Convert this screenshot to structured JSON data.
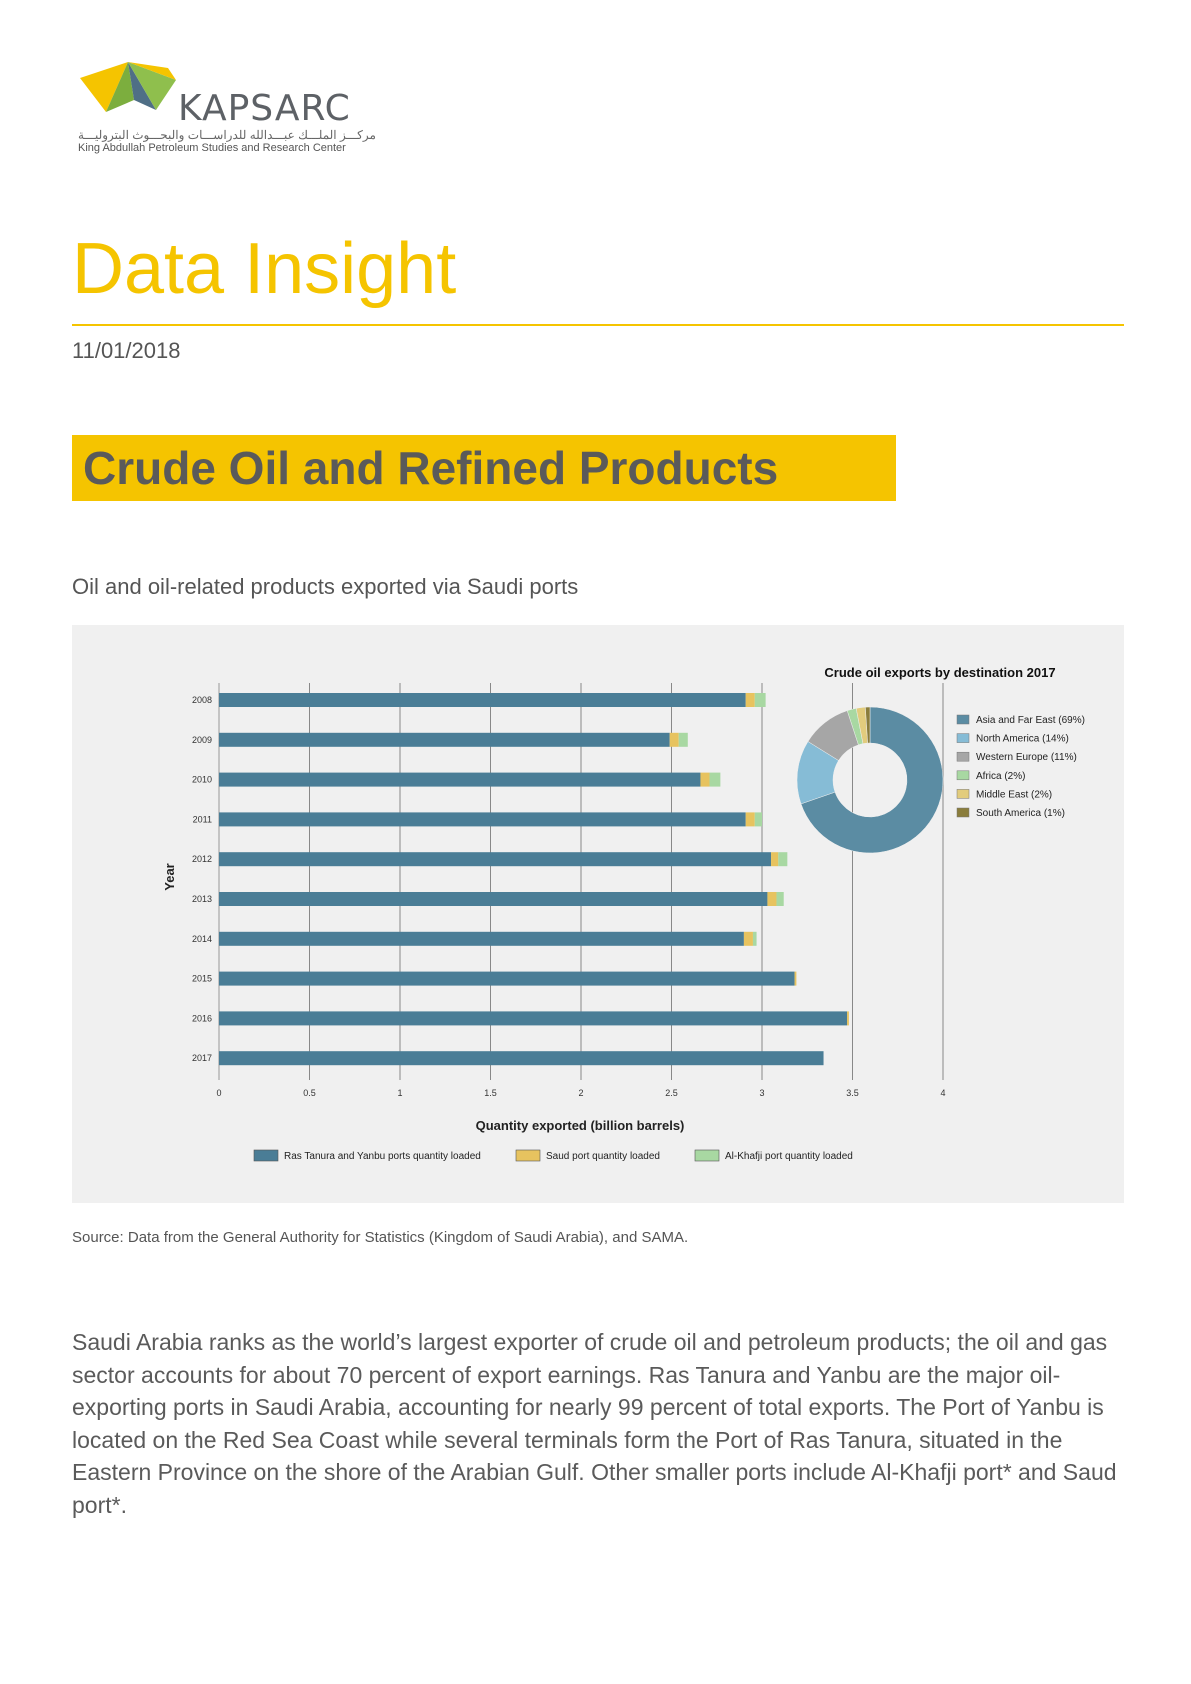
{
  "logo": {
    "name": "KAPSARC",
    "arabic": "مركـــز الملـــك عبـــدالله للدراســـات والبحـــوث البتروليـــة",
    "english": "King Abdullah Petroleum Studies and Research Center"
  },
  "header": {
    "title": "Data Insight",
    "date": "11/01/2018"
  },
  "section_title": "Crude Oil and Refined Products",
  "chart_title": "Oil and oil-related products exported via Saudi ports",
  "source": "Source: Data from the General Authority for Statistics (Kingdom of Saudi Arabia), and SAMA.",
  "body": "Saudi Arabia ranks as the world’s largest exporter of crude oil and petroleum products; the oil and gas sector accounts for about 70 percent of export earnings. Ras Tanura and Yanbu are the major oil-exporting ports in Saudi Arabia, accounting for nearly 99 percent of total exports. The Port of Yanbu is located on the Red Sea Coast while several terminals form the Port of Ras Tanura, situated in the Eastern Province on the shore of the Arabian Gulf. Other smaller ports include Al-Khafji port* and Saud port*.",
  "colors": {
    "accent": "#f5c400",
    "ras": "#4a7d96",
    "saud": "#e7c35f",
    "khafji": "#a8d8a2"
  },
  "chart_data": [
    {
      "type": "bar",
      "orientation": "horizontal",
      "stacked": true,
      "title": "",
      "xlabel": "Quantity exported (billion barrels)",
      "ylabel": "Year",
      "xlim": [
        0,
        4
      ],
      "xticks": [
        "0",
        "0.5",
        "1",
        "1.5",
        "2",
        "2.5",
        "3",
        "3.5",
        "4"
      ],
      "categories": [
        "2008",
        "2009",
        "2010",
        "2011",
        "2012",
        "2013",
        "2014",
        "2015",
        "2016",
        "2017"
      ],
      "series": [
        {
          "name": "Ras Tanura and Yanbu ports quantity loaded",
          "color": "#4a7d96",
          "values": [
            2.91,
            2.49,
            2.66,
            2.91,
            3.05,
            3.03,
            2.9,
            3.18,
            3.47,
            3.34
          ]
        },
        {
          "name": "Saud port quantity loaded",
          "color": "#e7c35f",
          "values": [
            0.05,
            0.05,
            0.05,
            0.05,
            0.04,
            0.05,
            0.05,
            0.01,
            0.01,
            0.0
          ]
        },
        {
          "name": "Al-Khafji port quantity loaded",
          "color": "#a8d8a2",
          "values": [
            0.06,
            0.05,
            0.06,
            0.04,
            0.05,
            0.04,
            0.02,
            0.0,
            0.0,
            0.0
          ]
        }
      ],
      "legend_position": "bottom"
    },
    {
      "type": "pie",
      "donut": true,
      "title": "Crude oil exports by destination 2017",
      "labels": [
        "Asia and Far East (69%)",
        "North America (14%)",
        "Western Europe (11%)",
        "Africa (2%)",
        "Middle East (2%)",
        "South America (1%)"
      ],
      "values": [
        69,
        14,
        11,
        2,
        2,
        1
      ],
      "colors": [
        "#5b8ca3",
        "#86bcd6",
        "#a6a6a6",
        "#a8d8a2",
        "#e2cc7d",
        "#8a7d3c"
      ],
      "legend_position": "right"
    }
  ]
}
